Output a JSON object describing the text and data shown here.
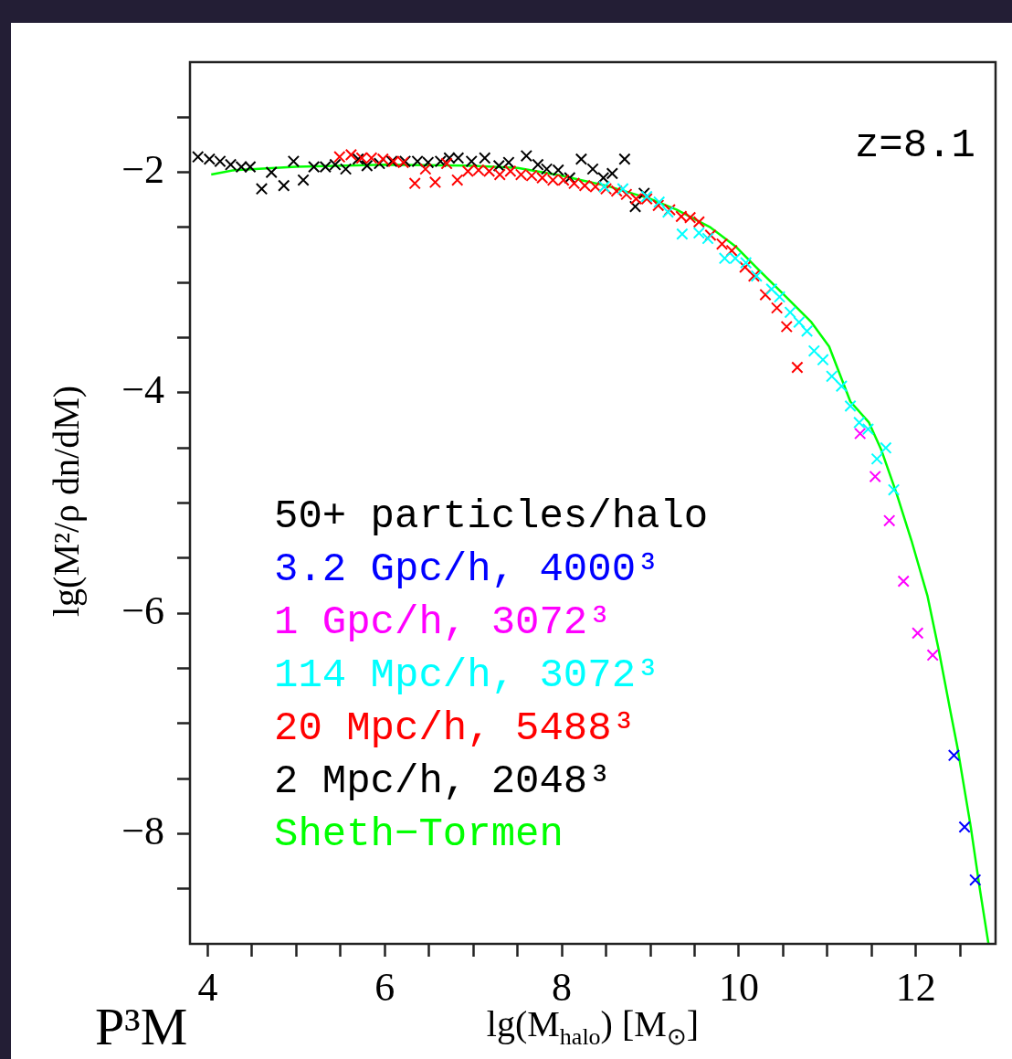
{
  "chart_data": {
    "type": "scatter",
    "xlabel": "lg(M$_{halo}$)  [M$_{⊙}$]",
    "ylabel": "lg(M²/ρ dn/dM)",
    "legend_title": "50+ particles/halo",
    "legend": "bottom left",
    "marker": "cross",
    "grid": false,
    "xlim": [
      3.8,
      12.9
    ],
    "ylim": [
      -9,
      -1
    ],
    "xticks": [
      4,
      {
        "value": 4.5,
        "label": null
      },
      {
        "value": 5,
        "label": null
      },
      {
        "value": 5.5,
        "label": null
      },
      6,
      {
        "value": 6.5,
        "label": null
      },
      {
        "value": 7,
        "label": null
      },
      {
        "value": 7.5,
        "label": null
      },
      8,
      {
        "value": 8.5,
        "label": null
      },
      {
        "value": 9,
        "label": null
      },
      {
        "value": 9.5,
        "label": null
      },
      10,
      {
        "value": 10.5,
        "label": null
      },
      {
        "value": 11,
        "label": null
      },
      {
        "value": 11.5,
        "label": null
      },
      12,
      {
        "value": 12.5,
        "label": null
      }
    ],
    "yticks": [
      {
        "value": -1.5,
        "label": null
      },
      {
        "value": -2,
        "label": "−2"
      },
      {
        "value": -2.5,
        "label": null
      },
      {
        "value": -3,
        "label": null
      },
      {
        "value": -3.5,
        "label": null
      },
      {
        "value": -4,
        "label": "−4"
      },
      {
        "value": -4.5,
        "label": null
      },
      {
        "value": -5,
        "label": null
      },
      {
        "value": -5.5,
        "label": null
      },
      {
        "value": -6,
        "label": "−6"
      },
      {
        "value": -6.5,
        "label": null
      },
      {
        "value": -7,
        "label": null
      },
      {
        "value": -7.5,
        "label": null
      },
      {
        "value": -8,
        "label": "−8"
      },
      {
        "value": -8.5,
        "label": null
      }
    ],
    "annotations": [
      "z=8.1",
      "P³M"
    ],
    "series": [
      {
        "name": "3.2 Gpc/h, 4000³",
        "color": "#0000ff",
        "type": "scatter",
        "x": [
          12.43,
          12.55,
          12.67
        ],
        "values": [
          -7.29,
          -7.94,
          -8.42
        ]
      },
      {
        "name": "1 Gpc/h, 3072³",
        "color": "#ff00ff",
        "type": "scatter",
        "x": [
          11.37,
          11.54,
          11.7,
          11.86,
          12.02,
          12.19
        ],
        "values": [
          -4.37,
          -4.76,
          -5.16,
          -5.71,
          -6.18,
          -6.38
        ]
      },
      {
        "name": "114 Mpc/h, 3072³",
        "color": "#00ffff",
        "type": "scatter",
        "x": [
          8.48,
          8.69,
          8.96,
          9.1,
          9.2,
          9.36,
          9.55,
          9.65,
          9.84,
          9.96,
          10.08,
          10.2,
          10.37,
          10.46,
          10.58,
          10.68,
          10.77,
          10.85,
          10.95,
          11.05,
          11.16,
          11.26,
          11.36,
          11.46,
          11.56,
          11.66,
          11.75
        ],
        "values": [
          -2.13,
          -2.15,
          -2.22,
          -2.27,
          -2.36,
          -2.56,
          -2.55,
          -2.6,
          -2.78,
          -2.78,
          -2.82,
          -2.94,
          -3.06,
          -3.13,
          -3.27,
          -3.36,
          -3.44,
          -3.62,
          -3.7,
          -3.85,
          -3.94,
          -4.12,
          -4.27,
          -4.33,
          -4.6,
          -4.5,
          -4.88
        ]
      },
      {
        "name": "20 Mpc/h, 5488³",
        "color": "#ff0000",
        "type": "scatter",
        "x": [
          5.49,
          5.62,
          5.74,
          5.85,
          5.98,
          6.1,
          6.21,
          6.34,
          6.46,
          6.57,
          6.7,
          6.82,
          6.94,
          7.06,
          7.18,
          7.3,
          7.42,
          7.54,
          7.66,
          7.78,
          7.9,
          8.02,
          8.14,
          8.26,
          8.38,
          8.5,
          8.62,
          8.73,
          8.84,
          8.96,
          9.09,
          9.22,
          9.35,
          9.45,
          9.55,
          9.68,
          9.81,
          9.92,
          10.07,
          10.17,
          10.3,
          10.43,
          10.54,
          10.66
        ],
        "values": [
          -1.86,
          -1.84,
          -1.87,
          -1.87,
          -1.88,
          -1.9,
          -1.91,
          -2.1,
          -1.97,
          -2.09,
          -1.92,
          -2.07,
          -1.99,
          -1.98,
          -1.99,
          -2.02,
          -1.99,
          -2.02,
          -2.03,
          -2.05,
          -2.07,
          -2.07,
          -2.1,
          -2.12,
          -2.13,
          -2.15,
          -2.17,
          -2.2,
          -2.24,
          -2.24,
          -2.3,
          -2.34,
          -2.4,
          -2.41,
          -2.45,
          -2.57,
          -2.65,
          -2.71,
          -2.86,
          -2.94,
          -3.11,
          -3.23,
          -3.4,
          -3.77
        ]
      },
      {
        "name": "2 Mpc/h, 2048³",
        "color": "#000000",
        "type": "scatter",
        "x": [
          3.89,
          4.02,
          4.14,
          4.26,
          4.38,
          4.48,
          4.61,
          4.72,
          4.86,
          4.97,
          5.08,
          5.2,
          5.33,
          5.44,
          5.56,
          5.7,
          5.8,
          5.94,
          6.08,
          6.23,
          6.37,
          6.49,
          6.63,
          6.73,
          6.83,
          6.98,
          7.13,
          7.29,
          7.4,
          7.6,
          7.73,
          7.83,
          7.96,
          8.09,
          8.22,
          8.35,
          8.47,
          8.57,
          8.71,
          8.83,
          8.93
        ],
        "values": [
          -1.86,
          -1.88,
          -1.9,
          -1.93,
          -1.95,
          -1.95,
          -2.15,
          -2,
          -2.12,
          -1.9,
          -2.07,
          -1.95,
          -1.95,
          -1.93,
          -1.97,
          -1.88,
          -1.94,
          -1.92,
          -1.9,
          -1.9,
          -1.9,
          -1.91,
          -1.9,
          -1.87,
          -1.87,
          -1.9,
          -1.87,
          -1.94,
          -1.91,
          -1.85,
          -1.93,
          -1.97,
          -1.98,
          -2.05,
          -1.88,
          -1.97,
          -2.05,
          -2.01,
          -1.88,
          -2.31,
          -2.19
        ]
      },
      {
        "name": "Sheth−Tormen",
        "color": "#00ff00",
        "type": "line",
        "marker": "none",
        "x": [
          4.04,
          4.3,
          5,
          6,
          7,
          7.5,
          8,
          8.21,
          8.5,
          9,
          9.3,
          9.68,
          9.96,
          10.23,
          10.51,
          10.82,
          11.02,
          11.26,
          11.47,
          11.61,
          11.78,
          11.95,
          12.13,
          12.26,
          12.39,
          12.47,
          12.62,
          12.72,
          12.82
        ],
        "values": [
          -2.02,
          -1.98,
          -1.95,
          -1.93,
          -1.94,
          -1.96,
          -2.03,
          -2.07,
          -2.12,
          -2.24,
          -2.34,
          -2.5,
          -2.67,
          -2.89,
          -3.11,
          -3.36,
          -3.58,
          -4.08,
          -4.27,
          -4.52,
          -4.91,
          -5.34,
          -5.84,
          -6.34,
          -6.89,
          -7.22,
          -7.94,
          -8.49,
          -9
        ]
      }
    ]
  }
}
